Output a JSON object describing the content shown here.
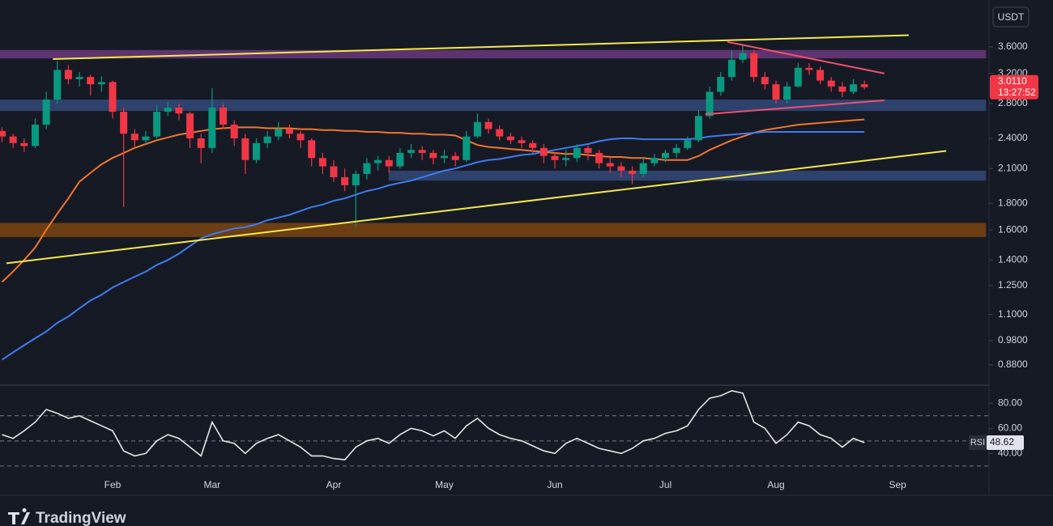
{
  "chart_data": [
    {
      "type": "candlestick",
      "currency": "USDT",
      "log_scale": true,
      "categories": [
        null,
        null,
        null,
        null,
        null,
        null,
        null,
        null,
        null,
        null,
        "Feb",
        null,
        null,
        null,
        null,
        null,
        null,
        null,
        null,
        "Mar",
        null,
        null,
        null,
        null,
        null,
        null,
        null,
        null,
        null,
        null,
        "Apr",
        null,
        null,
        null,
        null,
        null,
        null,
        null,
        null,
        null,
        "May",
        null,
        null,
        null,
        null,
        null,
        null,
        null,
        null,
        null,
        "Jun",
        null,
        null,
        null,
        null,
        null,
        null,
        null,
        null,
        null,
        "Jul",
        null,
        null,
        null,
        null,
        null,
        null,
        null,
        null,
        null,
        "Aug",
        null,
        null,
        null,
        null,
        null,
        null,
        null,
        null,
        null,
        null,
        "Sep"
      ],
      "open": [
        2.48,
        2.42,
        2.35,
        2.32,
        2.55,
        2.85,
        3.25,
        3.12,
        3.15,
        3.05,
        3.08,
        2.7,
        2.45,
        2.38,
        2.42,
        2.7,
        2.75,
        2.68,
        2.4,
        2.3,
        2.75,
        2.55,
        2.4,
        2.18,
        2.35,
        2.42,
        2.5,
        2.45,
        2.38,
        2.2,
        2.12,
        2.02,
        1.95,
        2.05,
        2.15,
        2.18,
        2.12,
        2.25,
        2.28,
        2.25,
        2.2,
        2.22,
        2.18,
        2.42,
        2.58,
        2.5,
        2.42,
        2.38,
        2.35,
        2.3,
        2.22,
        2.18,
        2.2,
        2.3,
        2.25,
        2.15,
        2.12,
        2.08,
        2.05,
        2.15,
        2.2,
        2.25,
        2.3,
        2.38,
        2.65,
        2.95,
        3.15,
        3.4,
        3.5,
        3.15,
        3.05,
        2.85,
        3.02,
        3.28,
        3.25,
        3.1,
        3.02,
        2.95,
        3.05,
        null,
        null,
        null
      ],
      "high": [
        2.52,
        2.45,
        2.4,
        2.62,
        2.95,
        3.38,
        3.32,
        3.22,
        3.18,
        3.16,
        3.1,
        2.75,
        2.5,
        2.48,
        2.78,
        2.82,
        2.8,
        2.7,
        2.45,
        3.0,
        2.8,
        2.6,
        2.45,
        2.4,
        2.48,
        2.58,
        2.55,
        2.48,
        2.4,
        2.25,
        2.18,
        2.1,
        2.08,
        2.2,
        2.22,
        2.22,
        2.3,
        2.34,
        2.32,
        2.28,
        2.28,
        2.26,
        2.48,
        2.68,
        2.62,
        2.54,
        2.46,
        2.42,
        2.38,
        2.34,
        2.26,
        2.28,
        2.34,
        2.33,
        2.28,
        2.2,
        2.16,
        2.12,
        2.2,
        2.24,
        2.28,
        2.34,
        2.42,
        2.72,
        3.02,
        3.22,
        3.55,
        3.62,
        3.55,
        3.22,
        3.1,
        3.08,
        3.35,
        3.35,
        3.3,
        3.15,
        3.08,
        3.12,
        3.1,
        null,
        null,
        null
      ],
      "low": [
        2.36,
        2.3,
        2.26,
        2.3,
        2.5,
        2.8,
        3.05,
        3.02,
        2.9,
        2.95,
        2.62,
        1.77,
        2.3,
        2.34,
        2.4,
        2.65,
        2.6,
        2.3,
        2.15,
        2.25,
        2.5,
        2.32,
        2.05,
        2.15,
        2.3,
        2.38,
        2.4,
        2.3,
        2.12,
        2.05,
        1.98,
        1.9,
        1.62,
        2.0,
        2.08,
        2.06,
        2.1,
        2.2,
        2.18,
        2.14,
        2.15,
        2.12,
        2.16,
        2.4,
        2.45,
        2.38,
        2.34,
        2.3,
        2.25,
        2.15,
        2.1,
        2.12,
        2.16,
        2.18,
        2.1,
        2.06,
        2.02,
        1.96,
        2.02,
        2.12,
        2.16,
        2.2,
        2.28,
        2.36,
        2.62,
        2.9,
        3.1,
        3.35,
        3.08,
        2.98,
        2.8,
        2.8,
        3.0,
        3.18,
        3.05,
        2.95,
        2.88,
        2.92,
        2.98,
        null,
        null,
        null
      ],
      "close": [
        2.42,
        2.35,
        2.32,
        2.55,
        2.85,
        3.25,
        3.12,
        3.15,
        3.05,
        3.08,
        2.7,
        2.45,
        2.38,
        2.42,
        2.7,
        2.75,
        2.68,
        2.4,
        2.3,
        2.75,
        2.55,
        2.4,
        2.18,
        2.35,
        2.42,
        2.5,
        2.45,
        2.38,
        2.2,
        2.12,
        2.02,
        1.95,
        2.05,
        2.15,
        2.18,
        2.12,
        2.25,
        2.28,
        2.25,
        2.2,
        2.22,
        2.18,
        2.42,
        2.58,
        2.5,
        2.42,
        2.38,
        2.35,
        2.3,
        2.22,
        2.18,
        2.2,
        2.3,
        2.25,
        2.15,
        2.12,
        2.08,
        2.05,
        2.15,
        2.2,
        2.25,
        2.3,
        2.38,
        2.65,
        2.95,
        3.15,
        3.4,
        3.5,
        3.15,
        3.05,
        2.85,
        3.02,
        3.28,
        3.25,
        3.1,
        3.02,
        2.95,
        3.05,
        3.011,
        null,
        null,
        null
      ],
      "up_color": "#089981",
      "down_color": "#f23645",
      "series": [
        {
          "color": "#f0762d",
          "values": [
            1.27,
            1.33,
            1.4,
            1.48,
            1.6,
            1.72,
            1.84,
            1.98,
            2.06,
            2.14,
            2.2,
            2.25,
            2.3,
            2.34,
            2.38,
            2.41,
            2.44,
            2.46,
            2.48,
            2.5,
            2.51,
            2.52,
            2.52,
            2.52,
            2.51,
            2.51,
            2.51,
            2.5,
            2.5,
            2.49,
            2.49,
            2.48,
            2.48,
            2.47,
            2.47,
            2.46,
            2.46,
            2.45,
            2.45,
            2.44,
            2.44,
            2.43,
            2.38,
            2.33,
            2.31,
            2.3,
            2.29,
            2.28,
            2.27,
            2.26,
            2.25,
            2.24,
            2.24,
            2.23,
            2.22,
            2.21,
            2.21,
            2.2,
            2.2,
            2.19,
            2.18,
            2.18,
            2.18,
            2.22,
            2.28,
            2.33,
            2.38,
            2.42,
            2.46,
            2.49,
            2.51,
            2.53,
            2.55,
            2.56,
            2.57,
            2.58,
            2.59,
            2.6,
            2.61,
            null,
            null,
            null
          ]
        },
        {
          "color": "#3d7cf0",
          "values": [
            0.9,
            0.93,
            0.96,
            0.99,
            1.02,
            1.06,
            1.09,
            1.13,
            1.17,
            1.2,
            1.24,
            1.27,
            1.3,
            1.33,
            1.37,
            1.4,
            1.44,
            1.49,
            1.54,
            1.57,
            1.59,
            1.61,
            1.62,
            1.64,
            1.67,
            1.69,
            1.71,
            1.74,
            1.77,
            1.79,
            1.82,
            1.84,
            1.87,
            1.9,
            1.92,
            1.95,
            1.97,
            1.99,
            2.02,
            2.05,
            2.08,
            2.1,
            2.13,
            2.16,
            2.18,
            2.19,
            2.21,
            2.23,
            2.24,
            2.26,
            2.28,
            2.3,
            2.32,
            2.34,
            2.37,
            2.39,
            2.4,
            2.4,
            2.39,
            2.39,
            2.39,
            2.39,
            2.39,
            2.4,
            2.42,
            2.43,
            2.44,
            2.45,
            2.46,
            2.47,
            2.47,
            2.47,
            2.47,
            2.47,
            2.47,
            2.47,
            2.47,
            2.47,
            2.47,
            null,
            null,
            null
          ]
        }
      ],
      "zones": [
        {
          "range": [
            3.42,
            3.55
          ],
          "x": [
            0,
            89
          ],
          "color": "#6a3a7c"
        },
        {
          "range": [
            2.71,
            2.85
          ],
          "x": [
            0,
            89
          ],
          "color": "#34497a"
        },
        {
          "range": [
            1.99,
            2.08
          ],
          "x": [
            35.7,
            89
          ],
          "color": "#34497a"
        },
        {
          "range": [
            1.55,
            1.65
          ],
          "x": [
            0,
            89
          ],
          "color": "#7a4512"
        }
      ],
      "trendlines": [
        {
          "x": [
            4.6,
            82
          ],
          "y": [
            3.41,
            3.79
          ],
          "color": "#f5e94a"
        },
        {
          "x": [
            0.4,
            85.4
          ],
          "y": [
            1.38,
            2.27
          ],
          "color": "#f5e94a"
        },
        {
          "x": [
            65.6,
            79.8
          ],
          "y": [
            3.68,
            3.2
          ],
          "color": "#f0506e"
        },
        {
          "x": [
            63.6,
            79.8
          ],
          "y": [
            2.67,
            2.84
          ],
          "color": "#f0506e"
        }
      ],
      "ylim": [
        0.807,
        4.43
      ],
      "yticks": [
        {
          "value": 3.6,
          "label": "3.6000"
        },
        {
          "value": 3.2,
          "label": "3.2000"
        },
        {
          "value": 2.8,
          "label": "2.8000"
        },
        {
          "value": 2.4,
          "label": "2.4000"
        },
        {
          "value": 2.1,
          "label": "2.1000"
        },
        {
          "value": 1.8,
          "label": "1.8000"
        },
        {
          "value": 1.6,
          "label": "1.6000"
        },
        {
          "value": 1.4,
          "label": "1.4000"
        },
        {
          "value": 1.25,
          "label": "1.2500"
        },
        {
          "value": 1.1,
          "label": "1.1000"
        },
        {
          "value": 0.98,
          "label": "0.9800"
        },
        {
          "value": 0.88,
          "label": "0.8800"
        }
      ],
      "last_price": {
        "value": 3.011,
        "label": "3.0110",
        "timer": "13:27:52"
      }
    },
    {
      "type": "line",
      "series": [
        {
          "name": "RSI",
          "color": "#e6e6e6",
          "values": [
            55,
            52,
            58,
            65,
            75,
            72,
            68,
            70,
            66,
            62,
            58,
            42,
            38,
            40,
            50,
            55,
            52,
            45,
            38,
            65,
            50,
            48,
            40,
            48,
            52,
            55,
            50,
            45,
            38,
            38,
            36,
            35,
            45,
            50,
            52,
            48,
            55,
            60,
            58,
            54,
            58,
            52,
            62,
            68,
            60,
            55,
            52,
            50,
            46,
            42,
            40,
            48,
            52,
            48,
            44,
            42,
            40,
            44,
            50,
            52,
            56,
            58,
            62,
            75,
            84,
            86,
            90,
            88,
            65,
            60,
            48,
            55,
            65,
            62,
            55,
            52,
            45,
            52,
            48.62,
            null,
            null,
            null
          ]
        }
      ],
      "levels": [
        70,
        50,
        30
      ],
      "ylim": [
        8,
        95
      ],
      "yticks": [
        {
          "value": 80,
          "label": "80.00"
        },
        {
          "value": 60,
          "label": "60.00"
        },
        {
          "value": 40,
          "label": "40.00"
        }
      ]
    }
  ],
  "footer": {
    "brand": "TradingView"
  }
}
